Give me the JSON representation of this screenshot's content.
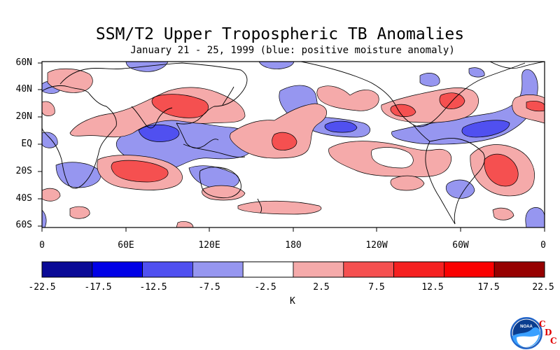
{
  "title": "SSM/T2 Upper Tropospheric TB Anomalies",
  "subtitle": "January 21 - 25, 1999 (blue: positive moisture anomaly)",
  "lat_labels": [
    "60N",
    "40N",
    "20N",
    "EQ",
    "20S",
    "40S",
    "60S"
  ],
  "lon_labels": [
    "0",
    "60E",
    "120E",
    "180",
    "120W",
    "60W",
    "0"
  ],
  "colorbar": {
    "ticks": [
      "-22.5",
      "-17.5",
      "-12.5",
      "-7.5",
      "-2.5",
      "2.5",
      "7.5",
      "12.5",
      "17.5",
      "22.5"
    ],
    "colors": [
      "#0a0a96",
      "#0000e6",
      "#5050f0",
      "#9696f0",
      "#ffffff",
      "#f5aaaa",
      "#f55050",
      "#f52020",
      "#fa0000",
      "#960000"
    ],
    "units": "K"
  },
  "map": {
    "colors": {
      "pos1": "#f5aaaa",
      "pos2": "#f55050",
      "neg1": "#9696f0",
      "neg2": "#5050f0"
    }
  },
  "logo": {
    "letters": [
      "C",
      "D",
      "C"
    ],
    "badge": "NOAA"
  }
}
